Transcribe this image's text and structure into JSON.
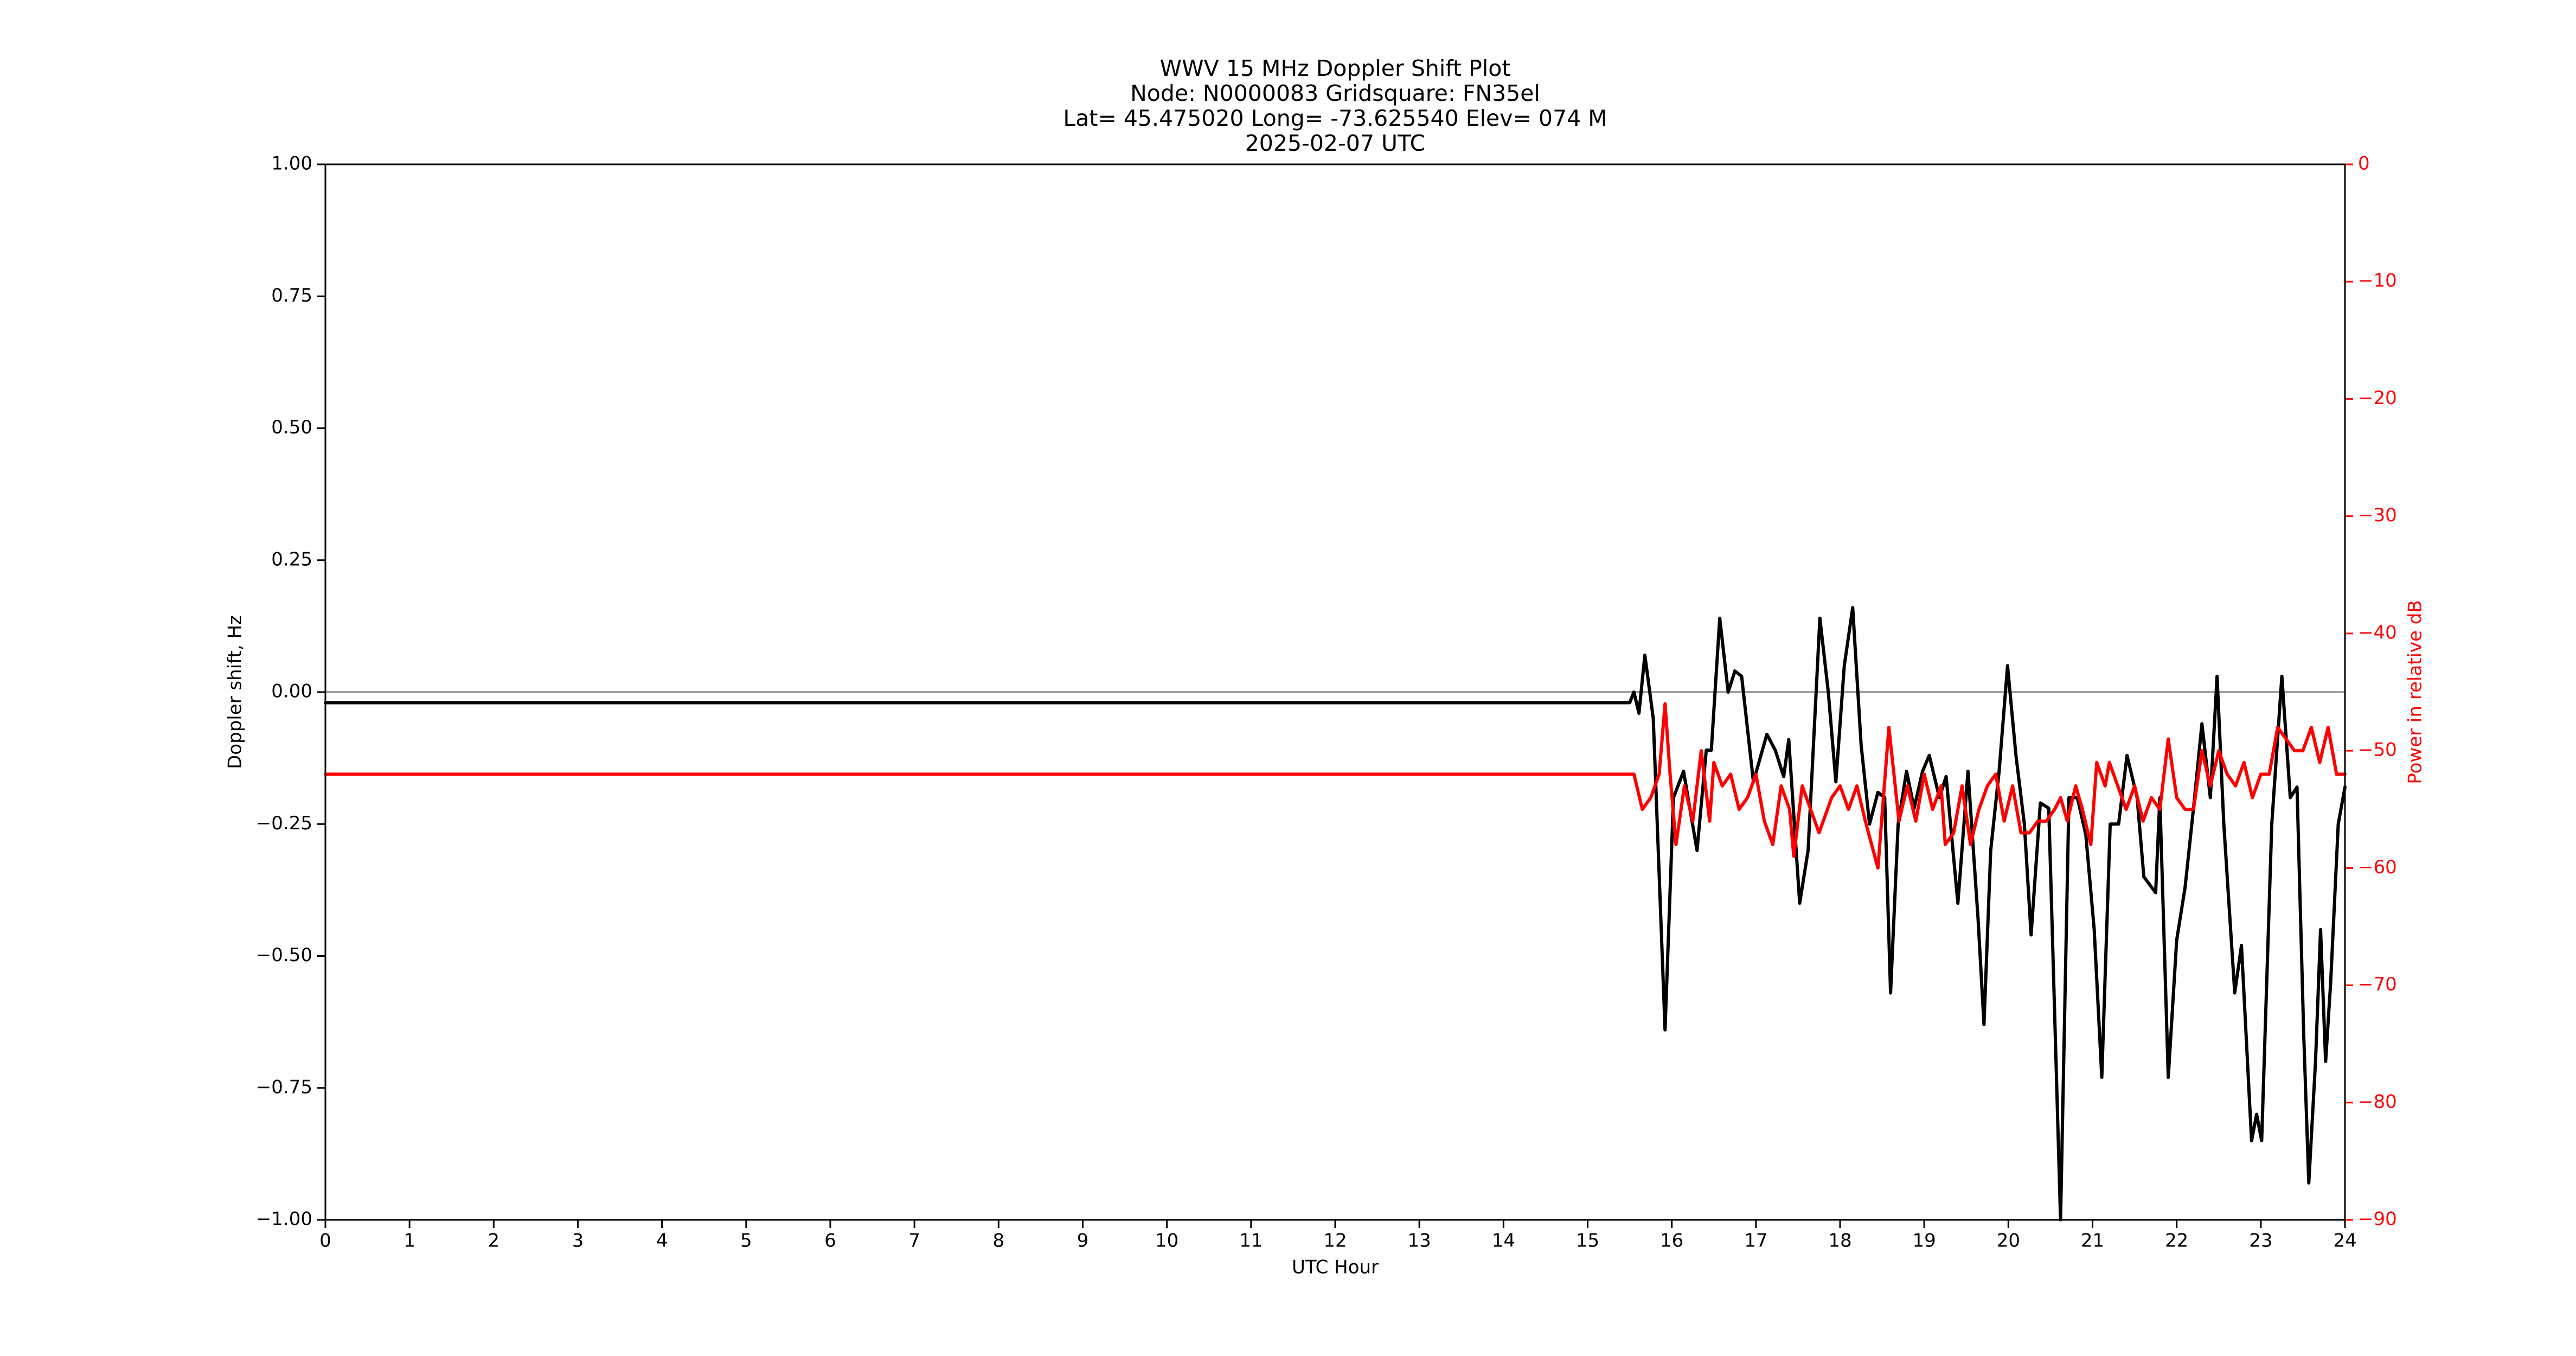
{
  "chart_data": {
    "type": "line",
    "title": [
      "WWV 15 MHz Doppler Shift Plot",
      "Node:  N0000083     Gridsquare:  FN35el",
      "Lat= 45.475020    Long= -73.625540    Elev= 074 M",
      "2025-02-07  UTC"
    ],
    "xlabel": "UTC Hour",
    "ylabel": "Doppler shift, Hz",
    "y2label": "Power in relative dB",
    "xlim": [
      0,
      24
    ],
    "xticks": [
      0,
      1,
      2,
      3,
      4,
      5,
      6,
      7,
      8,
      9,
      10,
      11,
      12,
      13,
      14,
      15,
      16,
      17,
      18,
      19,
      20,
      21,
      22,
      23,
      24
    ],
    "ylim": [
      -1,
      1
    ],
    "yticks": [
      {
        "value": -1,
        "label": "−1.00"
      },
      {
        "value": -0.75,
        "label": "−0.75"
      },
      {
        "value": -0.5,
        "label": "−0.50"
      },
      {
        "value": -0.25,
        "label": "−0.25"
      },
      {
        "value": 0,
        "label": "0.00"
      },
      {
        "value": 0.25,
        "label": "0.25"
      },
      {
        "value": 0.5,
        "label": "0.50"
      },
      {
        "value": 0.75,
        "label": "0.75"
      },
      {
        "value": 1,
        "label": "1.00"
      }
    ],
    "y2lim": [
      -90,
      0
    ],
    "y2ticks": [
      {
        "value": -90,
        "label": "−90"
      },
      {
        "value": -80,
        "label": "−80"
      },
      {
        "value": -70,
        "label": "−70"
      },
      {
        "value": -60,
        "label": "−60"
      },
      {
        "value": -50,
        "label": "−50"
      },
      {
        "value": -40,
        "label": "−40"
      },
      {
        "value": -30,
        "label": "−30"
      },
      {
        "value": -20,
        "label": "−20"
      },
      {
        "value": -10,
        "label": "−10"
      },
      0
    ],
    "hline": 0,
    "hline_color": "#a0a0a0",
    "series": [
      {
        "name": "Doppler shift",
        "color": "#000000",
        "x": [
          0,
          15.5,
          15.55,
          15.61,
          15.68,
          15.78,
          15.92,
          16.02,
          16.14,
          16.3,
          16.41,
          16.47,
          16.57,
          16.67,
          16.75,
          16.83,
          16.97,
          17.13,
          17.23,
          17.33,
          17.39,
          17.52,
          17.62,
          17.76,
          17.86,
          17.95,
          18.05,
          18.15,
          18.25,
          18.35,
          18.45,
          18.53,
          18.6,
          18.69,
          18.79,
          18.88,
          18.98,
          19.06,
          19.18,
          19.26,
          19.4,
          19.52,
          19.64,
          19.71,
          19.79,
          19.89,
          19.99,
          20.09,
          20.19,
          20.27,
          20.38,
          20.48,
          20.62,
          20.72,
          20.82,
          20.92,
          21.02,
          21.11,
          21.21,
          21.31,
          21.41,
          21.53,
          21.61,
          21.75,
          21.8,
          21.9,
          22.0,
          22.1,
          22.2,
          22.3,
          22.4,
          22.48,
          22.56,
          22.69,
          22.77,
          22.89,
          22.95,
          23.01,
          23.13,
          23.25,
          23.35,
          23.43,
          23.51,
          23.57,
          23.65,
          23.71,
          23.77,
          23.83,
          23.92,
          24.0
        ],
        "values": [
          -0.02,
          -0.02,
          0.0,
          -0.04,
          0.07,
          -0.05,
          -0.64,
          -0.2,
          -0.15,
          -0.3,
          -0.11,
          -0.11,
          0.14,
          0.0,
          0.04,
          0.03,
          -0.17,
          -0.08,
          -0.11,
          -0.16,
          -0.09,
          -0.4,
          -0.3,
          0.14,
          0.0,
          -0.17,
          0.05,
          0.16,
          -0.1,
          -0.25,
          -0.19,
          -0.2,
          -0.57,
          -0.25,
          -0.15,
          -0.22,
          -0.15,
          -0.12,
          -0.2,
          -0.16,
          -0.4,
          -0.15,
          -0.43,
          -0.63,
          -0.3,
          -0.15,
          0.05,
          -0.12,
          -0.25,
          -0.46,
          -0.21,
          -0.22,
          -1.0,
          -0.2,
          -0.2,
          -0.27,
          -0.45,
          -0.73,
          -0.25,
          -0.25,
          -0.12,
          -0.2,
          -0.35,
          -0.38,
          -0.2,
          -0.73,
          -0.47,
          -0.37,
          -0.22,
          -0.06,
          -0.2,
          0.03,
          -0.25,
          -0.57,
          -0.48,
          -0.85,
          -0.8,
          -0.85,
          -0.25,
          0.03,
          -0.2,
          -0.18,
          -0.65,
          -0.93,
          -0.7,
          -0.45,
          -0.7,
          -0.55,
          -0.25,
          -0.18
        ]
      },
      {
        "name": "Power",
        "color": "#ff0000",
        "axis": "y2",
        "x": [
          0,
          15.5,
          15.55,
          15.65,
          15.75,
          15.85,
          15.92,
          15.98,
          16.05,
          16.15,
          16.25,
          16.35,
          16.45,
          16.5,
          16.6,
          16.7,
          16.8,
          16.9,
          17.0,
          17.1,
          17.2,
          17.3,
          17.4,
          17.45,
          17.55,
          17.65,
          17.75,
          17.9,
          18.0,
          18.1,
          18.2,
          18.3,
          18.45,
          18.58,
          18.7,
          18.8,
          18.9,
          19.0,
          19.1,
          19.2,
          19.25,
          19.35,
          19.45,
          19.55,
          19.65,
          19.75,
          19.85,
          19.95,
          20.05,
          20.15,
          20.25,
          20.35,
          20.45,
          20.55,
          20.62,
          20.7,
          20.8,
          20.88,
          20.98,
          21.05,
          21.15,
          21.2,
          21.3,
          21.4,
          21.5,
          21.6,
          21.7,
          21.8,
          21.9,
          22.0,
          22.1,
          22.2,
          22.3,
          22.4,
          22.5,
          22.6,
          22.7,
          22.8,
          22.9,
          23.0,
          23.1,
          23.2,
          23.3,
          23.4,
          23.5,
          23.6,
          23.7,
          23.8,
          23.9,
          24.0
        ],
        "values": [
          -52,
          -52,
          -52,
          -55,
          -54,
          -52,
          -46,
          -52,
          -58,
          -53,
          -56,
          -50,
          -56,
          -51,
          -53,
          -52,
          -55,
          -54,
          -52,
          -56,
          -58,
          -53,
          -55,
          -59,
          -53,
          -55,
          -57,
          -54,
          -53,
          -55,
          -53,
          -56,
          -60,
          -48,
          -56,
          -53,
          -56,
          -52,
          -55,
          -53,
          -58,
          -57,
          -53,
          -58,
          -55,
          -53,
          -52,
          -56,
          -53,
          -57,
          -57,
          -56,
          -56,
          -55,
          -54,
          -56,
          -53,
          -55,
          -58,
          -51,
          -53,
          -51,
          -53,
          -55,
          -53,
          -56,
          -54,
          -55,
          -49,
          -54,
          -55,
          -55,
          -50,
          -53,
          -50,
          -52,
          -53,
          -51,
          -54,
          -52,
          -52,
          -48,
          -49,
          -50,
          -50,
          -48,
          -51,
          -48,
          -52,
          -52
        ]
      }
    ]
  }
}
